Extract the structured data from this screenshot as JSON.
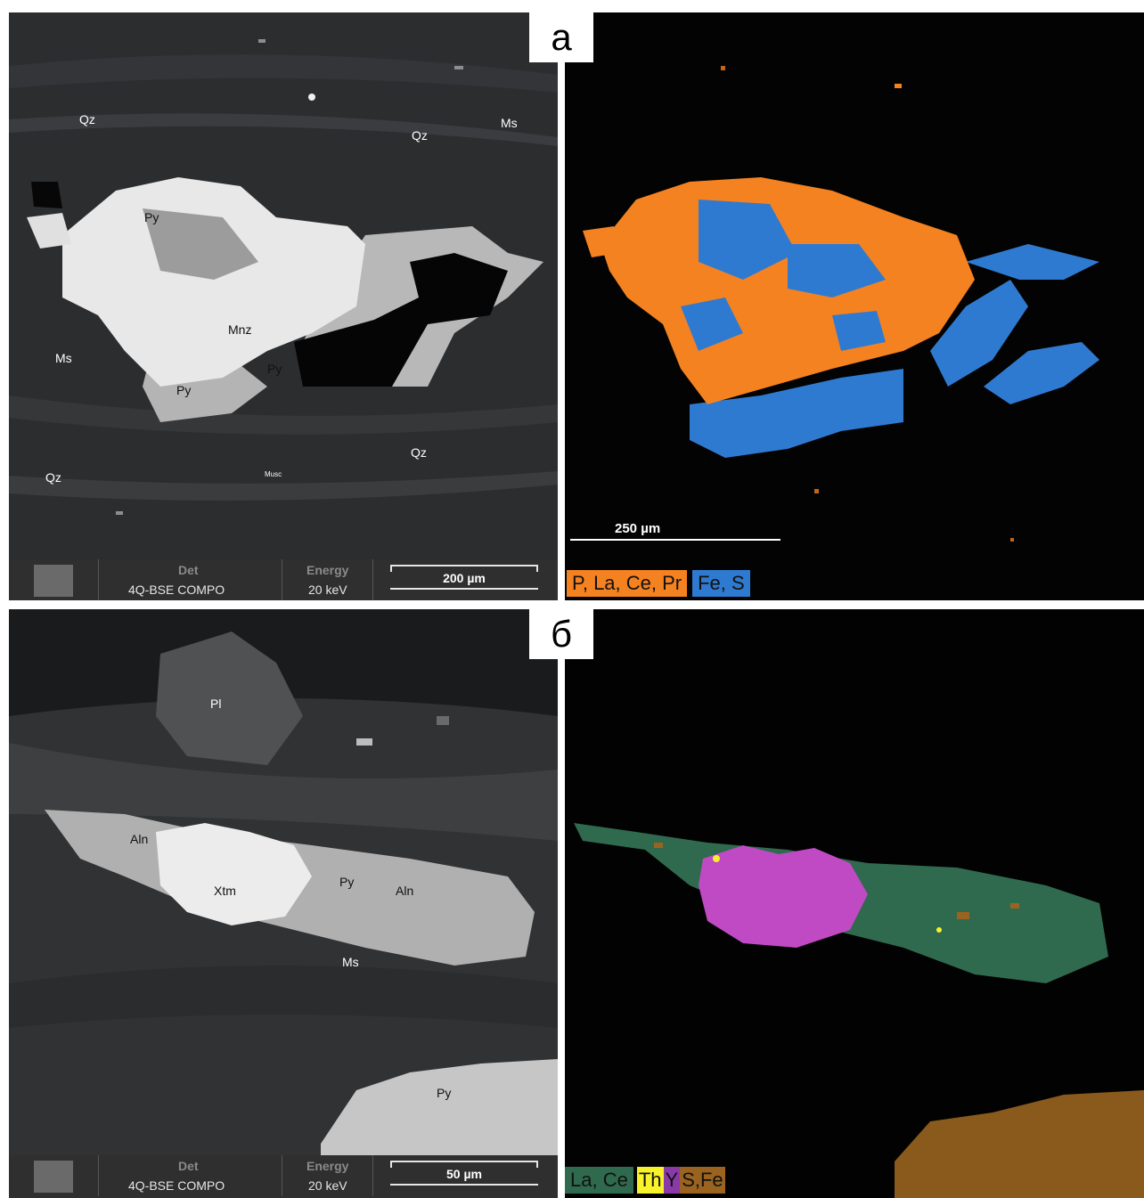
{
  "panel_letters": {
    "a": "а",
    "b": "б"
  },
  "colors": {
    "ree_orange": "#f58220",
    "fe_s_blue": "#2f7ad1",
    "la_ce_green": "#2f6a4e",
    "th_yellow": "#f7f22a",
    "y_magenta": "#c04ac4",
    "s_fe_brown": "#9a6420"
  },
  "panel_a_bse": {
    "labels": {
      "qz1": "Qz",
      "qz2": "Qz",
      "ms1": "Ms",
      "py1": "Py",
      "mnz": "Mnz",
      "ms2": "Ms",
      "py2": "Py",
      "py3": "Py",
      "qz3": "Qz",
      "qz4": "Qz",
      "musc": "Musc"
    },
    "infobar": {
      "det_label": "Det",
      "det_value": "4Q-BSE COMPO",
      "energy_label": "Energy",
      "energy_value": "20 keV",
      "scale": "200 µm"
    }
  },
  "panel_a_map": {
    "scale": "250 µm",
    "legend": [
      "P, La, Ce, Pr",
      "Fe, S"
    ]
  },
  "panel_b_bse": {
    "labels": {
      "pl": "Pl",
      "aln1": "Aln",
      "xtm": "Xtm",
      "py1": "Py",
      "aln2": "Aln",
      "ms": "Ms",
      "py2": "Py"
    },
    "infobar": {
      "det_label": "Det",
      "det_value": "4Q-BSE COMPO",
      "energy_label": "Energy",
      "energy_value": "20 keV",
      "scale": "50 µm"
    }
  },
  "panel_b_map": {
    "legend": [
      "La, Ce",
      "Th",
      "Y",
      "S,Fe"
    ]
  }
}
